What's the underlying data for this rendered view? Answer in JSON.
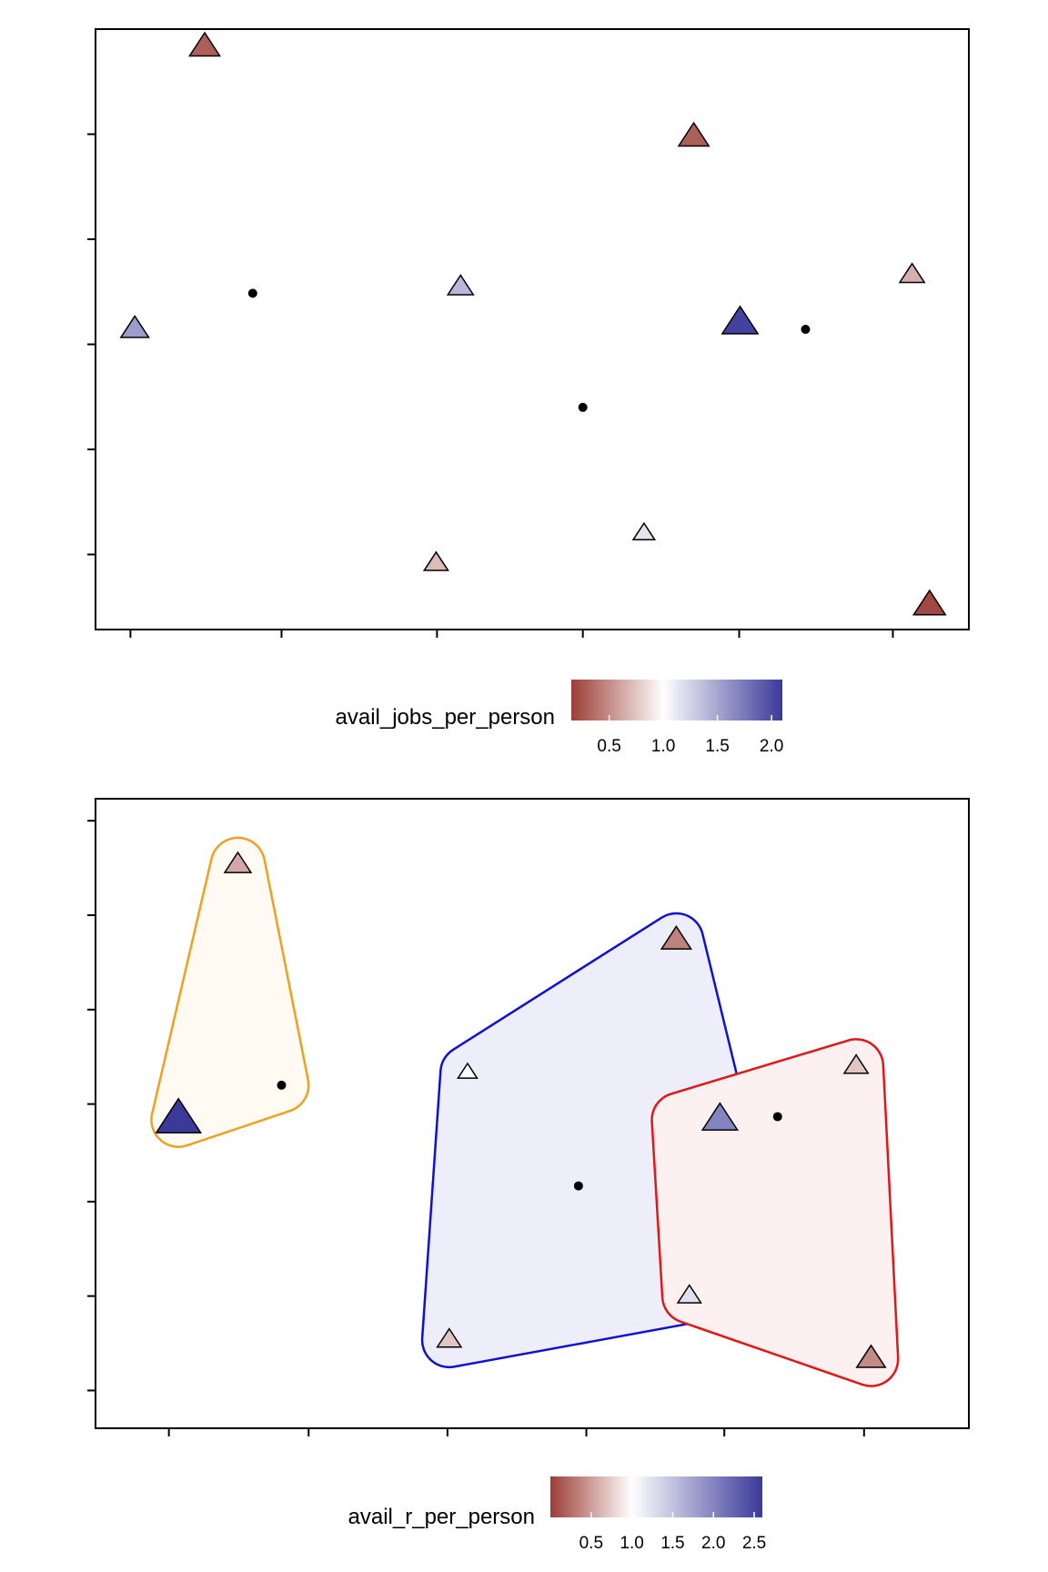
{
  "chart_data": [
    {
      "type": "scatter",
      "title": "",
      "xlabel": "",
      "ylabel": "",
      "xlim": [
        0,
        1
      ],
      "ylim": [
        0,
        1
      ],
      "grid": false,
      "colorbar": {
        "title": "avail_jobs_per_person",
        "ticks": [
          "0.5",
          "1.0",
          "1.5",
          "2.0"
        ],
        "tick_values": [
          0.5,
          1.0,
          1.5,
          2.0
        ],
        "range": [
          0.15,
          2.1
        ],
        "low_color": "#9b3d36",
        "mid_color": "#ffffff",
        "high_color": "#3a3a9a",
        "placement": "bottom"
      },
      "points": [
        {
          "x": 0.125,
          "y": 0.97,
          "value": 0.3,
          "marker": "triangle"
        },
        {
          "x": 0.685,
          "y": 0.82,
          "value": 0.3,
          "marker": "triangle"
        },
        {
          "x": 0.935,
          "y": 0.59,
          "value": 0.65,
          "marker": "triangle"
        },
        {
          "x": 0.045,
          "y": 0.5,
          "value": 1.55,
          "marker": "triangle"
        },
        {
          "x": 0.418,
          "y": 0.57,
          "value": 1.4,
          "marker": "triangle"
        },
        {
          "x": 0.738,
          "y": 0.51,
          "value": 2.05,
          "marker": "triangle"
        },
        {
          "x": 0.628,
          "y": 0.16,
          "value": 1.15,
          "marker": "triangle"
        },
        {
          "x": 0.39,
          "y": 0.11,
          "value": 0.7,
          "marker": "triangle"
        },
        {
          "x": 0.955,
          "y": 0.04,
          "value": 0.2,
          "marker": "triangle"
        },
        {
          "x": 0.18,
          "y": 0.56,
          "marker": "dot"
        },
        {
          "x": 0.558,
          "y": 0.37,
          "marker": "dot"
        },
        {
          "x": 0.813,
          "y": 0.5,
          "marker": "dot"
        }
      ]
    },
    {
      "type": "scatter",
      "title": "",
      "xlabel": "",
      "ylabel": "",
      "xlim": [
        0,
        1
      ],
      "ylim": [
        0,
        1
      ],
      "grid": false,
      "colorbar": {
        "title": "avail_r_per_person",
        "ticks": [
          "0.5",
          "1.0",
          "1.5",
          "2.0",
          "2.5"
        ],
        "tick_values": [
          0.5,
          1.0,
          1.5,
          2.0,
          2.5
        ],
        "range": [
          0.0,
          2.6
        ],
        "low_color": "#9b3d36",
        "mid_color": "#ffffff",
        "high_color": "#3a3a9a",
        "placement": "bottom"
      },
      "hulls": [
        {
          "color": "#f0a020",
          "fill": "#fffaf2",
          "points": [
            [
              0.163,
              0.895
            ],
            [
              0.095,
              0.49
            ],
            [
              0.213,
              0.545
            ]
          ]
        },
        {
          "color": "#1010d0",
          "fill": "#eeeefb",
          "points": [
            [
              0.665,
              0.775
            ],
            [
              0.426,
              0.565
            ],
            [
              0.405,
              0.14
            ],
            [
              0.68,
              0.21
            ],
            [
              0.715,
              0.49
            ]
          ]
        },
        {
          "color": "#e01818",
          "fill": "#fdf0f0",
          "points": [
            [
              0.668,
              0.49
            ],
            [
              0.68,
              0.21
            ],
            [
              0.888,
              0.11
            ],
            [
              0.871,
              0.575
            ]
          ]
        }
      ],
      "points": [
        {
          "x": 0.163,
          "y": 0.895,
          "value": 0.55,
          "marker": "triangle"
        },
        {
          "x": 0.665,
          "y": 0.775,
          "value": 0.35,
          "marker": "triangle"
        },
        {
          "x": 0.426,
          "y": 0.565,
          "value": 1.0,
          "marker": "triangle"
        },
        {
          "x": 0.095,
          "y": 0.49,
          "value": 2.6,
          "marker": "triangle"
        },
        {
          "x": 0.715,
          "y": 0.49,
          "value": 2.0,
          "marker": "triangle"
        },
        {
          "x": 0.871,
          "y": 0.575,
          "value": 0.7,
          "marker": "triangle"
        },
        {
          "x": 0.68,
          "y": 0.21,
          "value": 1.25,
          "marker": "triangle"
        },
        {
          "x": 0.405,
          "y": 0.14,
          "value": 0.7,
          "marker": "triangle"
        },
        {
          "x": 0.888,
          "y": 0.11,
          "value": 0.4,
          "marker": "triangle"
        },
        {
          "x": 0.213,
          "y": 0.545,
          "marker": "dot"
        },
        {
          "x": 0.553,
          "y": 0.385,
          "marker": "dot"
        },
        {
          "x": 0.781,
          "y": 0.495,
          "marker": "dot"
        }
      ]
    }
  ]
}
